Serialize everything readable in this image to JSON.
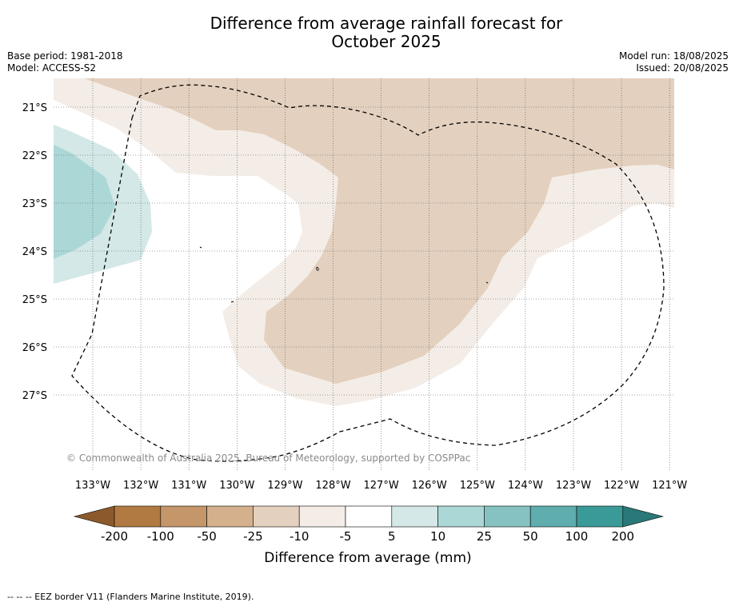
{
  "title_line1": "Difference from average rainfall forecast for",
  "title_line2": "October 2025",
  "meta_left": {
    "base_period": "Base period: 1981-2018",
    "model": "Model: ACCESS-S2"
  },
  "meta_right": {
    "model_run": "Model run: 18/08/2025",
    "issued": "Issued: 20/08/2025"
  },
  "copyright": "© Commonwealth of Australia 2025, Bureau of Meteorology, supported by COSPPac",
  "lat_labels": [
    "21°S",
    "22°S",
    "23°S",
    "24°S",
    "25°S",
    "26°S",
    "27°S"
  ],
  "lon_labels": [
    "133°W",
    "132°W",
    "131°W",
    "130°W",
    "129°W",
    "128°W",
    "127°W",
    "126°W",
    "125°W",
    "124°W",
    "123°W",
    "122°W",
    "121°W"
  ],
  "colorbar": {
    "title": "Difference from average (mm)",
    "tick_labels": [
      "-200",
      "-100",
      "-50",
      "-25",
      "-10",
      "-5",
      "5",
      "10",
      "25",
      "50",
      "100",
      "200"
    ],
    "colors": [
      "#8c5a2a",
      "#b07a42",
      "#c4966a",
      "#d4b08c",
      "#e3d0be",
      "#f4ede7",
      "#ffffff",
      "#d3e8e7",
      "#acd7d7",
      "#87c2c2",
      "#5fadad",
      "#3a9a98",
      "#2a7877"
    ]
  },
  "legend_line": "-- -- -- EEZ border V11 (Flanders Marine Institute, 2019).",
  "colors": {
    "dry_light": "#f4ede7",
    "dry_mid": "#e3d0be",
    "wet_light": "#d3e8e7",
    "wet_mid": "#acd7d7"
  }
}
